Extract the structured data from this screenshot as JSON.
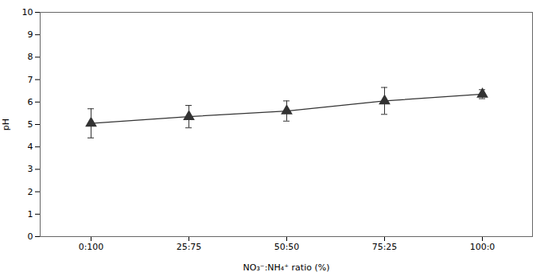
{
  "chart_data": {
    "type": "line",
    "categories": [
      "0:100",
      "25:75",
      "50:50",
      "75:25",
      "100:0"
    ],
    "values": [
      5.05,
      5.35,
      5.6,
      6.05,
      6.35
    ],
    "errors": [
      0.65,
      0.5,
      0.45,
      0.6,
      0.2
    ],
    "xlabel": "NO₃⁻:NH₄⁺ ratio (%)",
    "ylabel": "pH",
    "ylim": [
      0,
      10
    ],
    "yticks": [
      0,
      1,
      2,
      3,
      4,
      5,
      6,
      7,
      8,
      9,
      10
    ],
    "color": "#333333",
    "marker": "triangle",
    "grid": false
  }
}
